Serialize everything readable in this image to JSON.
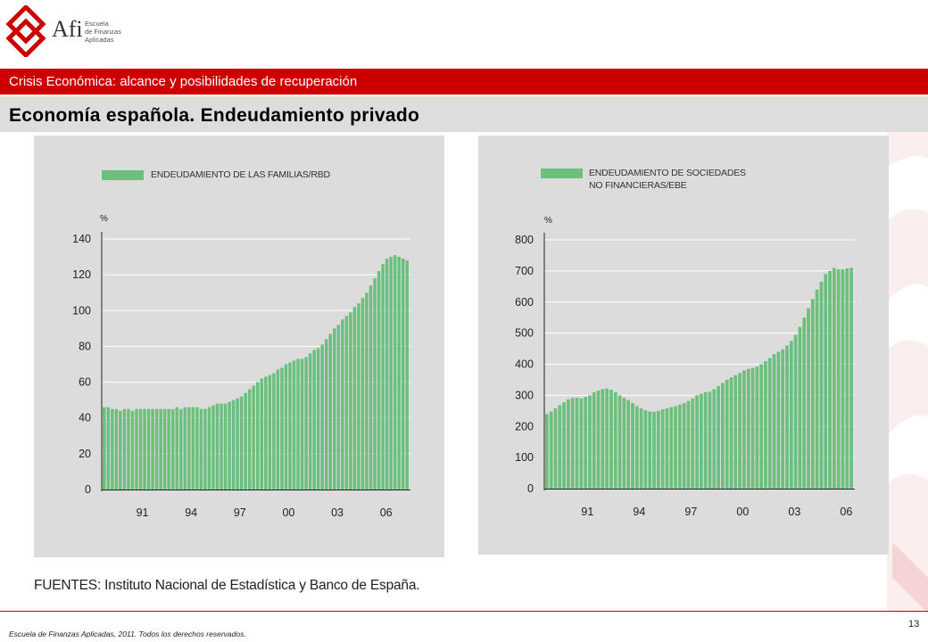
{
  "header": {
    "logo_name": "Afi",
    "logo_sub": [
      "Escuela",
      "de Finanzas",
      "Aplicadas"
    ],
    "section_title": "Crisis Económica: alcance y posibilidades de recuperación",
    "slide_title": "Economía española. Endeudamiento privado"
  },
  "colors": {
    "bar": "#6cbf7d",
    "accent_red": "#cc0000",
    "panel_bg": "#dcdcdc"
  },
  "chart_data": [
    {
      "type": "bar",
      "title": "ENDEUDAMIENTO DE LAS FAMILIAS/RBD",
      "unit_label": "%",
      "ylim": [
        0,
        140
      ],
      "yticks": [
        0,
        20,
        40,
        60,
        80,
        100,
        120,
        140
      ],
      "xticks": [
        "91",
        "94",
        "97",
        "00",
        "03",
        "06"
      ],
      "x_start": 1989.0,
      "x_step": 0.25,
      "grid": true,
      "values": [
        46,
        46,
        45,
        45,
        44,
        45,
        45,
        44,
        45,
        45,
        45,
        45,
        45,
        45,
        45,
        45,
        45,
        45,
        46,
        45,
        46,
        46,
        46,
        46,
        45,
        45,
        46,
        47,
        48,
        48,
        48,
        49,
        50,
        51,
        52,
        54,
        56,
        58,
        60,
        62,
        63,
        64,
        65,
        67,
        68,
        70,
        71,
        72,
        73,
        73,
        74,
        76,
        78,
        79,
        81,
        84,
        87,
        90,
        92,
        95,
        97,
        99,
        102,
        104,
        107,
        110,
        114,
        118,
        122,
        126,
        129,
        130,
        131,
        130,
        129,
        128
      ]
    },
    {
      "type": "bar",
      "title": "ENDEUDAMIENTO DE SOCIEDADES NO FINANCIERAS/EBE",
      "title_lines": [
        "ENDEUDAMIENTO DE SOCIEDADES",
        "NO FINANCIERAS/EBE"
      ],
      "unit_label": "%",
      "ylim": [
        0,
        800
      ],
      "yticks": [
        0,
        100,
        200,
        300,
        400,
        500,
        600,
        700,
        800
      ],
      "xticks": [
        "91",
        "94",
        "97",
        "00",
        "03",
        "06"
      ],
      "x_start": 1989.0,
      "x_step": 0.25,
      "grid": true,
      "values": [
        240,
        248,
        258,
        268,
        278,
        287,
        292,
        292,
        290,
        295,
        300,
        310,
        315,
        320,
        322,
        318,
        310,
        300,
        292,
        285,
        275,
        265,
        258,
        252,
        248,
        247,
        250,
        255,
        258,
        262,
        265,
        270,
        275,
        282,
        290,
        300,
        305,
        310,
        312,
        320,
        330,
        340,
        350,
        358,
        365,
        372,
        380,
        385,
        388,
        392,
        400,
        410,
        420,
        432,
        440,
        448,
        460,
        475,
        495,
        520,
        550,
        580,
        610,
        640,
        665,
        690,
        700,
        710,
        705,
        705,
        708,
        710
      ]
    }
  ],
  "sources_text": "FUENTES: Instituto Nacional de Estadística y Banco de España.",
  "footer": {
    "copyright": "Escuela de Finanzas Aplicadas, 2011. Todos los derechos reservados.",
    "page_number": "13"
  }
}
